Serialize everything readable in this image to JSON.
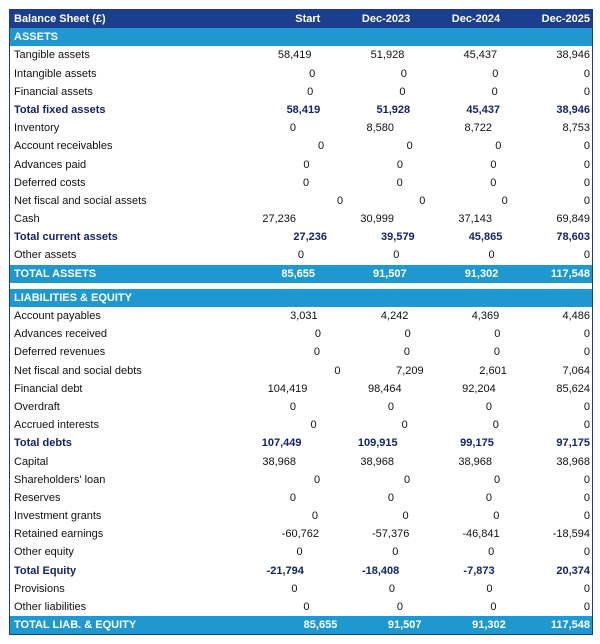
{
  "header": {
    "title": "Balance Sheet (£)",
    "columns": [
      "Start",
      "Dec-2023",
      "Dec-2024",
      "Dec-2025"
    ]
  },
  "colors": {
    "header_bg": "#1b3f8c",
    "section_bg": "#1e98cf",
    "total_text": "#15236b"
  },
  "assets": {
    "title": "ASSETS",
    "rows": [
      {
        "label": "Tangible assets",
        "values": [
          "58,419",
          "51,928",
          "45,437",
          "38,946"
        ]
      },
      {
        "label": "Intangible assets",
        "values": [
          "0",
          "0",
          "0",
          "0"
        ]
      },
      {
        "label": "Financial assets",
        "values": [
          "0",
          "0",
          "0",
          "0"
        ]
      },
      {
        "label": "Total fixed assets",
        "values": [
          "58,419",
          "51,928",
          "45,437",
          "38,946"
        ],
        "total": true
      },
      {
        "label": "Inventory",
        "values": [
          "0",
          "8,580",
          "8,722",
          "8,753"
        ]
      },
      {
        "label": "Account receivables",
        "values": [
          "0",
          "0",
          "0",
          "0"
        ]
      },
      {
        "label": "Advances paid",
        "values": [
          "0",
          "0",
          "0",
          "0"
        ]
      },
      {
        "label": "Deferred costs",
        "values": [
          "0",
          "0",
          "0",
          "0"
        ]
      },
      {
        "label": "Net fiscal and social assets",
        "values": [
          "0",
          "0",
          "0",
          "0"
        ]
      },
      {
        "label": "Cash",
        "values": [
          "27,236",
          "30,999",
          "37,143",
          "69,849"
        ]
      },
      {
        "label": "Total current assets",
        "values": [
          "27,236",
          "39,579",
          "45,865",
          "78,603"
        ],
        "total": true
      },
      {
        "label": "Other assets",
        "values": [
          "0",
          "0",
          "0",
          "0"
        ]
      }
    ],
    "grand_total": {
      "label": "TOTAL ASSETS",
      "values": [
        "85,655",
        "91,507",
        "91,302",
        "117,548"
      ]
    }
  },
  "liabilities": {
    "title": "LIABILITIES & EQUITY",
    "rows": [
      {
        "label": "Account payables",
        "values": [
          "3,031",
          "4,242",
          "4,369",
          "4,486"
        ]
      },
      {
        "label": "Advances received",
        "values": [
          "0",
          "0",
          "0",
          "0"
        ]
      },
      {
        "label": "Deferred revenues",
        "values": [
          "0",
          "0",
          "0",
          "0"
        ]
      },
      {
        "label": "Net fiscal and social debts",
        "values": [
          "0",
          "7,209",
          "2,601",
          "7,064"
        ]
      },
      {
        "label": "Financial debt",
        "values": [
          "104,419",
          "98,464",
          "92,204",
          "85,624"
        ]
      },
      {
        "label": "Overdraft",
        "values": [
          "0",
          "0",
          "0",
          "0"
        ]
      },
      {
        "label": "Accrued interests",
        "values": [
          "0",
          "0",
          "0",
          "0"
        ]
      },
      {
        "label": "Total debts",
        "values": [
          "107,449",
          "109,915",
          "99,175",
          "97,175"
        ],
        "total": true
      },
      {
        "label": "Capital",
        "values": [
          "38,968",
          "38,968",
          "38,968",
          "38,968"
        ]
      },
      {
        "label": "Shareholders' loan",
        "values": [
          "0",
          "0",
          "0",
          "0"
        ]
      },
      {
        "label": "Reserves",
        "values": [
          "0",
          "0",
          "0",
          "0"
        ]
      },
      {
        "label": "Investment grants",
        "values": [
          "0",
          "0",
          "0",
          "0"
        ]
      },
      {
        "label": "Retained earnings",
        "values": [
          "-60,762",
          "-57,376",
          "-46,841",
          "-18,594"
        ]
      },
      {
        "label": "Other equity",
        "values": [
          "0",
          "0",
          "0",
          "0"
        ]
      },
      {
        "label": "Total Equity",
        "values": [
          "-21,794",
          "-18,408",
          "-7,873",
          "20,374"
        ],
        "total": true
      },
      {
        "label": "Provisions",
        "values": [
          "0",
          "0",
          "0",
          "0"
        ]
      },
      {
        "label": "Other liabilities",
        "values": [
          "0",
          "0",
          "0",
          "0"
        ]
      }
    ],
    "grand_total": {
      "label": "TOTAL LIAB. & EQUITY",
      "values": [
        "85,655",
        "91,507",
        "91,302",
        "117,548"
      ]
    }
  }
}
